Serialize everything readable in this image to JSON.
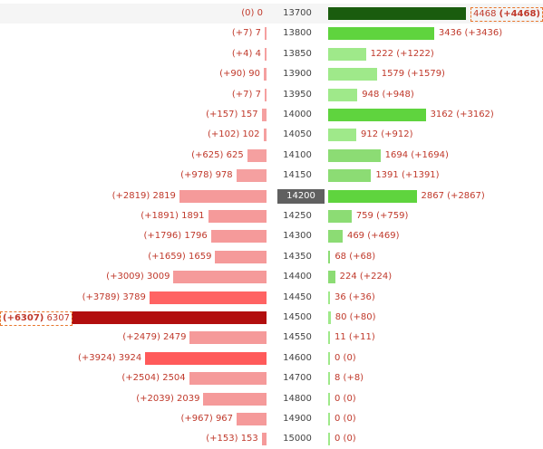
{
  "chart_data": {
    "type": "bar",
    "orientation": "horizontal-butterfly",
    "x_max": 6307,
    "atm_strike": "14200",
    "rows": [
      {
        "strike": "13700",
        "put_oi": 0,
        "put_chg": 0,
        "put_label": "(0) 0",
        "call_oi": 4468,
        "call_chg": 4468,
        "call_label": "4468 (+4468)",
        "call_color": "#1a5c0e",
        "put_color": "#f5a0a0",
        "call_max": true,
        "highlight": true
      },
      {
        "strike": "13800",
        "put_oi": 7,
        "put_chg": 7,
        "put_label": "(+7) 7",
        "call_oi": 3436,
        "call_chg": 3436,
        "call_label": "3436 (+3436)",
        "call_color": "#5fd43e",
        "put_color": "#f5a0a0"
      },
      {
        "strike": "13850",
        "put_oi": 4,
        "put_chg": 4,
        "put_label": "(+4) 4",
        "call_oi": 1222,
        "call_chg": 1222,
        "call_label": "1222 (+1222)",
        "call_color": "#9fe98a",
        "put_color": "#f5a0a0"
      },
      {
        "strike": "13900",
        "put_oi": 90,
        "put_chg": 90,
        "put_label": "(+90) 90",
        "call_oi": 1579,
        "call_chg": 1579,
        "call_label": "1579 (+1579)",
        "call_color": "#9fe98a",
        "put_color": "#f5a0a0"
      },
      {
        "strike": "13950",
        "put_oi": 7,
        "put_chg": 7,
        "put_label": "(+7) 7",
        "call_oi": 948,
        "call_chg": 948,
        "call_label": "948 (+948)",
        "call_color": "#9fe98a",
        "put_color": "#f5a0a0"
      },
      {
        "strike": "14000",
        "put_oi": 157,
        "put_chg": 157,
        "put_label": "(+157) 157",
        "call_oi": 3162,
        "call_chg": 3162,
        "call_label": "3162 (+3162)",
        "call_color": "#5fd43e",
        "put_color": "#f5a0a0"
      },
      {
        "strike": "14050",
        "put_oi": 102,
        "put_chg": 102,
        "put_label": "(+102) 102",
        "call_oi": 912,
        "call_chg": 912,
        "call_label": "912 (+912)",
        "call_color": "#9fe98a",
        "put_color": "#f5a0a0"
      },
      {
        "strike": "14100",
        "put_oi": 625,
        "put_chg": 625,
        "put_label": "(+625) 625",
        "call_oi": 1694,
        "call_chg": 1694,
        "call_label": "1694 (+1694)",
        "call_color": "#8cdc74",
        "put_color": "#f5a0a0"
      },
      {
        "strike": "14150",
        "put_oi": 978,
        "put_chg": 978,
        "put_label": "(+978) 978",
        "call_oi": 1391,
        "call_chg": 1391,
        "call_label": "1391 (+1391)",
        "call_color": "#8cdc74",
        "put_color": "#f5a0a0"
      },
      {
        "strike": "14200",
        "put_oi": 2819,
        "put_chg": 2819,
        "put_label": "(+2819) 2819",
        "call_oi": 2867,
        "call_chg": 2867,
        "call_label": "2867 (+2867)",
        "call_color": "#5fd43e",
        "put_color": "#f59a9a"
      },
      {
        "strike": "14250",
        "put_oi": 1891,
        "put_chg": 1891,
        "put_label": "(+1891) 1891",
        "call_oi": 759,
        "call_chg": 759,
        "call_label": "759 (+759)",
        "call_color": "#8cdc74",
        "put_color": "#f59a9a"
      },
      {
        "strike": "14300",
        "put_oi": 1796,
        "put_chg": 1796,
        "put_label": "(+1796) 1796",
        "call_oi": 469,
        "call_chg": 469,
        "call_label": "469 (+469)",
        "call_color": "#8cdc74",
        "put_color": "#f59a9a"
      },
      {
        "strike": "14350",
        "put_oi": 1659,
        "put_chg": 1659,
        "put_label": "(+1659) 1659",
        "call_oi": 68,
        "call_chg": 68,
        "call_label": "68 (+68)",
        "call_color": "#8cdc74",
        "put_color": "#f59a9a"
      },
      {
        "strike": "14400",
        "put_oi": 3009,
        "put_chg": 3009,
        "put_label": "(+3009) 3009",
        "call_oi": 224,
        "call_chg": 224,
        "call_label": "224 (+224)",
        "call_color": "#8cdc74",
        "put_color": "#f59a9a"
      },
      {
        "strike": "14450",
        "put_oi": 3789,
        "put_chg": 3789,
        "put_label": "(+3789) 3789",
        "call_oi": 36,
        "call_chg": 36,
        "call_label": "36 (+36)",
        "call_color": "#9fe98a",
        "put_color": "#ff6363"
      },
      {
        "strike": "14500",
        "put_oi": 6307,
        "put_chg": 6307,
        "put_label": "6307",
        "put_label_prefix": "(+6307)",
        "put_max": true,
        "call_oi": 80,
        "call_chg": 80,
        "call_label": "80 (+80)",
        "call_color": "#9fe98a",
        "put_color": "#b20e0e"
      },
      {
        "strike": "14550",
        "put_oi": 2479,
        "put_chg": 2479,
        "put_label": "(+2479) 2479",
        "call_oi": 11,
        "call_chg": 11,
        "call_label": "11 (+11)",
        "call_color": "#9fe98a",
        "put_color": "#f59a9a"
      },
      {
        "strike": "14600",
        "put_oi": 3924,
        "put_chg": 3924,
        "put_label": "(+3924) 3924",
        "call_oi": 0,
        "call_chg": 0,
        "call_label": "0 (0)",
        "call_color": "#9fe98a",
        "put_color": "#ff5a5a"
      },
      {
        "strike": "14700",
        "put_oi": 2504,
        "put_chg": 2504,
        "put_label": "(+2504) 2504",
        "call_oi": 8,
        "call_chg": 8,
        "call_label": "8 (+8)",
        "call_color": "#9fe98a",
        "put_color": "#f59a9a"
      },
      {
        "strike": "14800",
        "put_oi": 2039,
        "put_chg": 2039,
        "put_label": "(+2039) 2039",
        "call_oi": 0,
        "call_chg": 0,
        "call_label": "0 (0)",
        "call_color": "#9fe98a",
        "put_color": "#f59a9a"
      },
      {
        "strike": "14900",
        "put_oi": 967,
        "put_chg": 967,
        "put_label": "(+967) 967",
        "call_oi": 0,
        "call_chg": 0,
        "call_label": "0 (0)",
        "call_color": "#9fe98a",
        "put_color": "#f59a9a"
      },
      {
        "strike": "15000",
        "put_oi": 153,
        "put_chg": 153,
        "put_label": "(+153) 153",
        "call_oi": 0,
        "call_chg": 0,
        "call_label": "0 (0)",
        "call_color": "#9fe98a",
        "put_color": "#f59a9a"
      }
    ]
  }
}
